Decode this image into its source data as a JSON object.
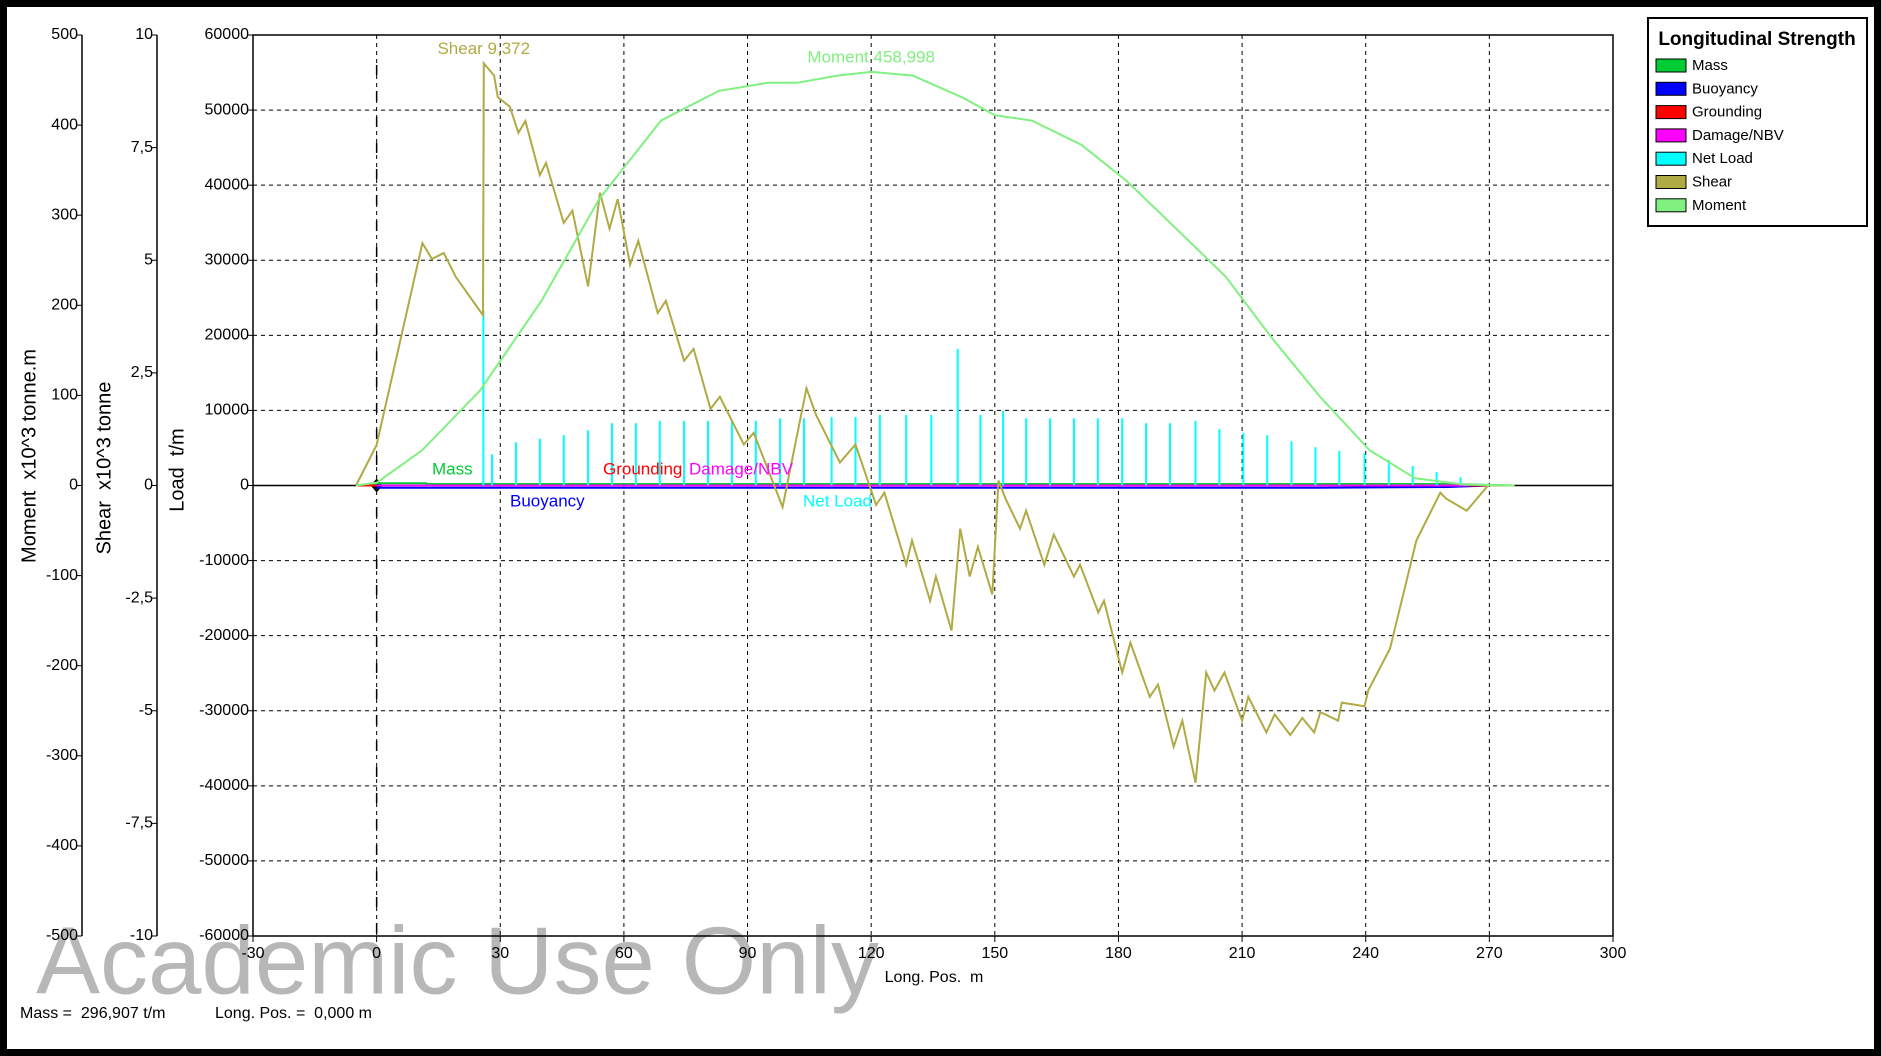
{
  "chart_data": {
    "type": "line",
    "legend_title": "Longitudinal Strength",
    "legend": "upper right outside",
    "grid": true,
    "xlabel": "Long. Pos.  m",
    "xlim": [
      -30,
      300
    ],
    "xticks": [
      -30,
      0,
      30,
      60,
      90,
      120,
      150,
      180,
      210,
      240,
      270,
      300
    ],
    "ylabel": "Load  t/m",
    "ylim": [
      -60000,
      60000
    ],
    "yticks": [
      -60000,
      -50000,
      -40000,
      -30000,
      -20000,
      -10000,
      0,
      10000,
      20000,
      30000,
      40000,
      50000,
      60000
    ],
    "y2label": "Shear  x10^3 tonne",
    "y2lim": [
      -10,
      10
    ],
    "y2ticks": [
      -10,
      {
        "value": -7.5,
        "label": "-7,5"
      },
      -5,
      {
        "value": -2.5,
        "label": "-2,5"
      },
      0,
      {
        "value": 2.5,
        "label": "2,5"
      },
      5,
      {
        "value": 7.5,
        "label": "7,5"
      },
      10
    ],
    "y3label": "Moment  x10^3 tonne.m",
    "y3lim": [
      -500,
      500
    ],
    "y3ticks": [
      -500,
      -400,
      -300,
      -200,
      -100,
      0,
      100,
      200,
      300,
      400,
      500
    ],
    "annotations": [
      "Shear 9,372",
      "Moment 458,998"
    ],
    "footer": [
      "Mass =  296,907 t/m",
      "Long. Pos. =  0,000 m"
    ],
    "watermark": "Academic Use Only",
    "series": [
      {
        "name": "Mass",
        "color": "#00cc33",
        "axis": "y",
        "mark": "line",
        "x": [
          -5,
          0,
          12,
          12,
          200,
          260,
          276
        ],
        "values": [
          0,
          300,
          300,
          200,
          200,
          200,
          0
        ]
      },
      {
        "name": "Buoyancy",
        "color": "#0000ff",
        "axis": "y",
        "mark": "line",
        "x": [
          0,
          12,
          200,
          228,
          260,
          270
        ],
        "values": [
          -300,
          -300,
          -300,
          -300,
          -200,
          0
        ]
      },
      {
        "name": "Grounding",
        "color": "#ff0000",
        "axis": "y",
        "mark": "line",
        "x": [
          -5,
          276
        ],
        "values": [
          0,
          0
        ]
      },
      {
        "name": "Damage/NBV",
        "color": "#ff00ff",
        "axis": "y",
        "mark": "line",
        "x": [
          0,
          265
        ],
        "values": [
          0,
          0
        ]
      },
      {
        "name": "Net Load",
        "color": "#00ffff",
        "axis": "y",
        "mark": "stem",
        "x": [
          25.9,
          28,
          33.8,
          39.6,
          45.4,
          51.3,
          57.1,
          62.9,
          68.7,
          74.6,
          80.4,
          86.2,
          92,
          97.9,
          103.7,
          110.4,
          116.2,
          122.1,
          128.5,
          134.6,
          141,
          146.5,
          152,
          157.6,
          163.4,
          169.2,
          175,
          180.9,
          186.7,
          192.5,
          198.7,
          204.5,
          210.3,
          216.1,
          222,
          227.8,
          233.6,
          239.7,
          245.6,
          251.4,
          257.2,
          263
        ],
        "values": [
          23300,
          4150,
          5750,
          6230,
          6710,
          7350,
          8300,
          8300,
          8600,
          8600,
          8600,
          8600,
          8600,
          8950,
          8950,
          9100,
          9100,
          9400,
          9400,
          9400,
          18200,
          9400,
          9900,
          8950,
          8950,
          8950,
          8950,
          8950,
          8300,
          8300,
          8600,
          7500,
          7000,
          6700,
          5900,
          5100,
          4600,
          4300,
          3400,
          2600,
          1800,
          1100
        ]
      },
      {
        "name": "Shear",
        "color": "#b0aa44",
        "axis": "y2",
        "mark": "line",
        "x": [
          -5,
          0,
          11.1,
          13.4,
          16.3,
          19.2,
          25.8,
          26,
          28.5,
          29.4,
          32.3,
          34.4,
          36.1,
          39.6,
          41.1,
          45.4,
          47.5,
          51.3,
          54.2,
          56.5,
          58.5,
          61.5,
          63.5,
          68.2,
          70.2,
          74.6,
          76.9,
          81,
          83.3,
          89.1,
          91.5,
          98.5,
          104.3,
          106.6,
          112.4,
          116.2,
          121.2,
          123.2,
          128.5,
          129.9,
          134.3,
          135.7,
          139.5,
          141.6,
          143.9,
          145.9,
          149.4,
          150.9,
          152.6,
          156.1,
          157.6,
          162,
          164.3,
          169.2,
          170.7,
          175.1,
          176.5,
          180.9,
          182.9,
          187.6,
          189.6,
          193.4,
          195.5,
          198.7,
          201.3,
          203.3,
          205.7,
          210,
          211.5,
          215.9,
          217.9,
          221.7,
          224.6,
          227.5,
          229,
          233.3,
          234.2,
          239.7,
          240.6,
          245.9,
          252.3,
          258.1,
          259.5,
          264.5,
          269.7,
          276.2
        ],
        "values": [
          0,
          0.9,
          5.38,
          5.03,
          5.16,
          4.63,
          3.78,
          9.372,
          9.1,
          8.62,
          8.41,
          7.83,
          8.09,
          6.89,
          7.16,
          5.83,
          6.1,
          4.42,
          6.5,
          5.7,
          6.36,
          4.9,
          5.43,
          3.83,
          4.1,
          2.77,
          3.03,
          1.7,
          1.97,
          0.91,
          1.17,
          -0.48,
          2.16,
          1.57,
          0.51,
          0.91,
          -0.43,
          -0.16,
          -1.76,
          -1.22,
          -2.56,
          -2.02,
          -3.22,
          -0.96,
          -2.02,
          -1.36,
          -2.42,
          0.11,
          -0.29,
          -0.96,
          -0.56,
          -1.76,
          -1.09,
          -2.02,
          -1.76,
          -2.82,
          -2.56,
          -4.15,
          -3.49,
          -4.69,
          -4.42,
          -5.8,
          -5.22,
          -6.6,
          -4.15,
          -4.55,
          -4.15,
          -5.22,
          -4.69,
          -5.48,
          -5.08,
          -5.54,
          -5.16,
          -5.48,
          -5.03,
          -5.22,
          -4.82,
          -4.9,
          -4.55,
          -3.62,
          -1.22,
          -0.16,
          -0.29,
          -0.56,
          0,
          0
        ]
      },
      {
        "name": "Moment",
        "color": "#80f080",
        "axis": "y3",
        "mark": "line",
        "x": [
          -5,
          0,
          11,
          25,
          40,
          54,
          69,
          83,
          95,
          102,
          112,
          120,
          130,
          142,
          150,
          159,
          171,
          182,
          194,
          206,
          217,
          229,
          241,
          252,
          264,
          276
        ],
        "values": [
          0,
          3,
          39,
          105,
          205,
          318,
          405,
          438,
          447,
          447,
          455,
          458.998,
          455,
          431,
          411,
          405,
          378,
          338,
          285,
          232,
          165,
          98,
          39,
          8,
          1,
          0
        ]
      }
    ]
  }
}
